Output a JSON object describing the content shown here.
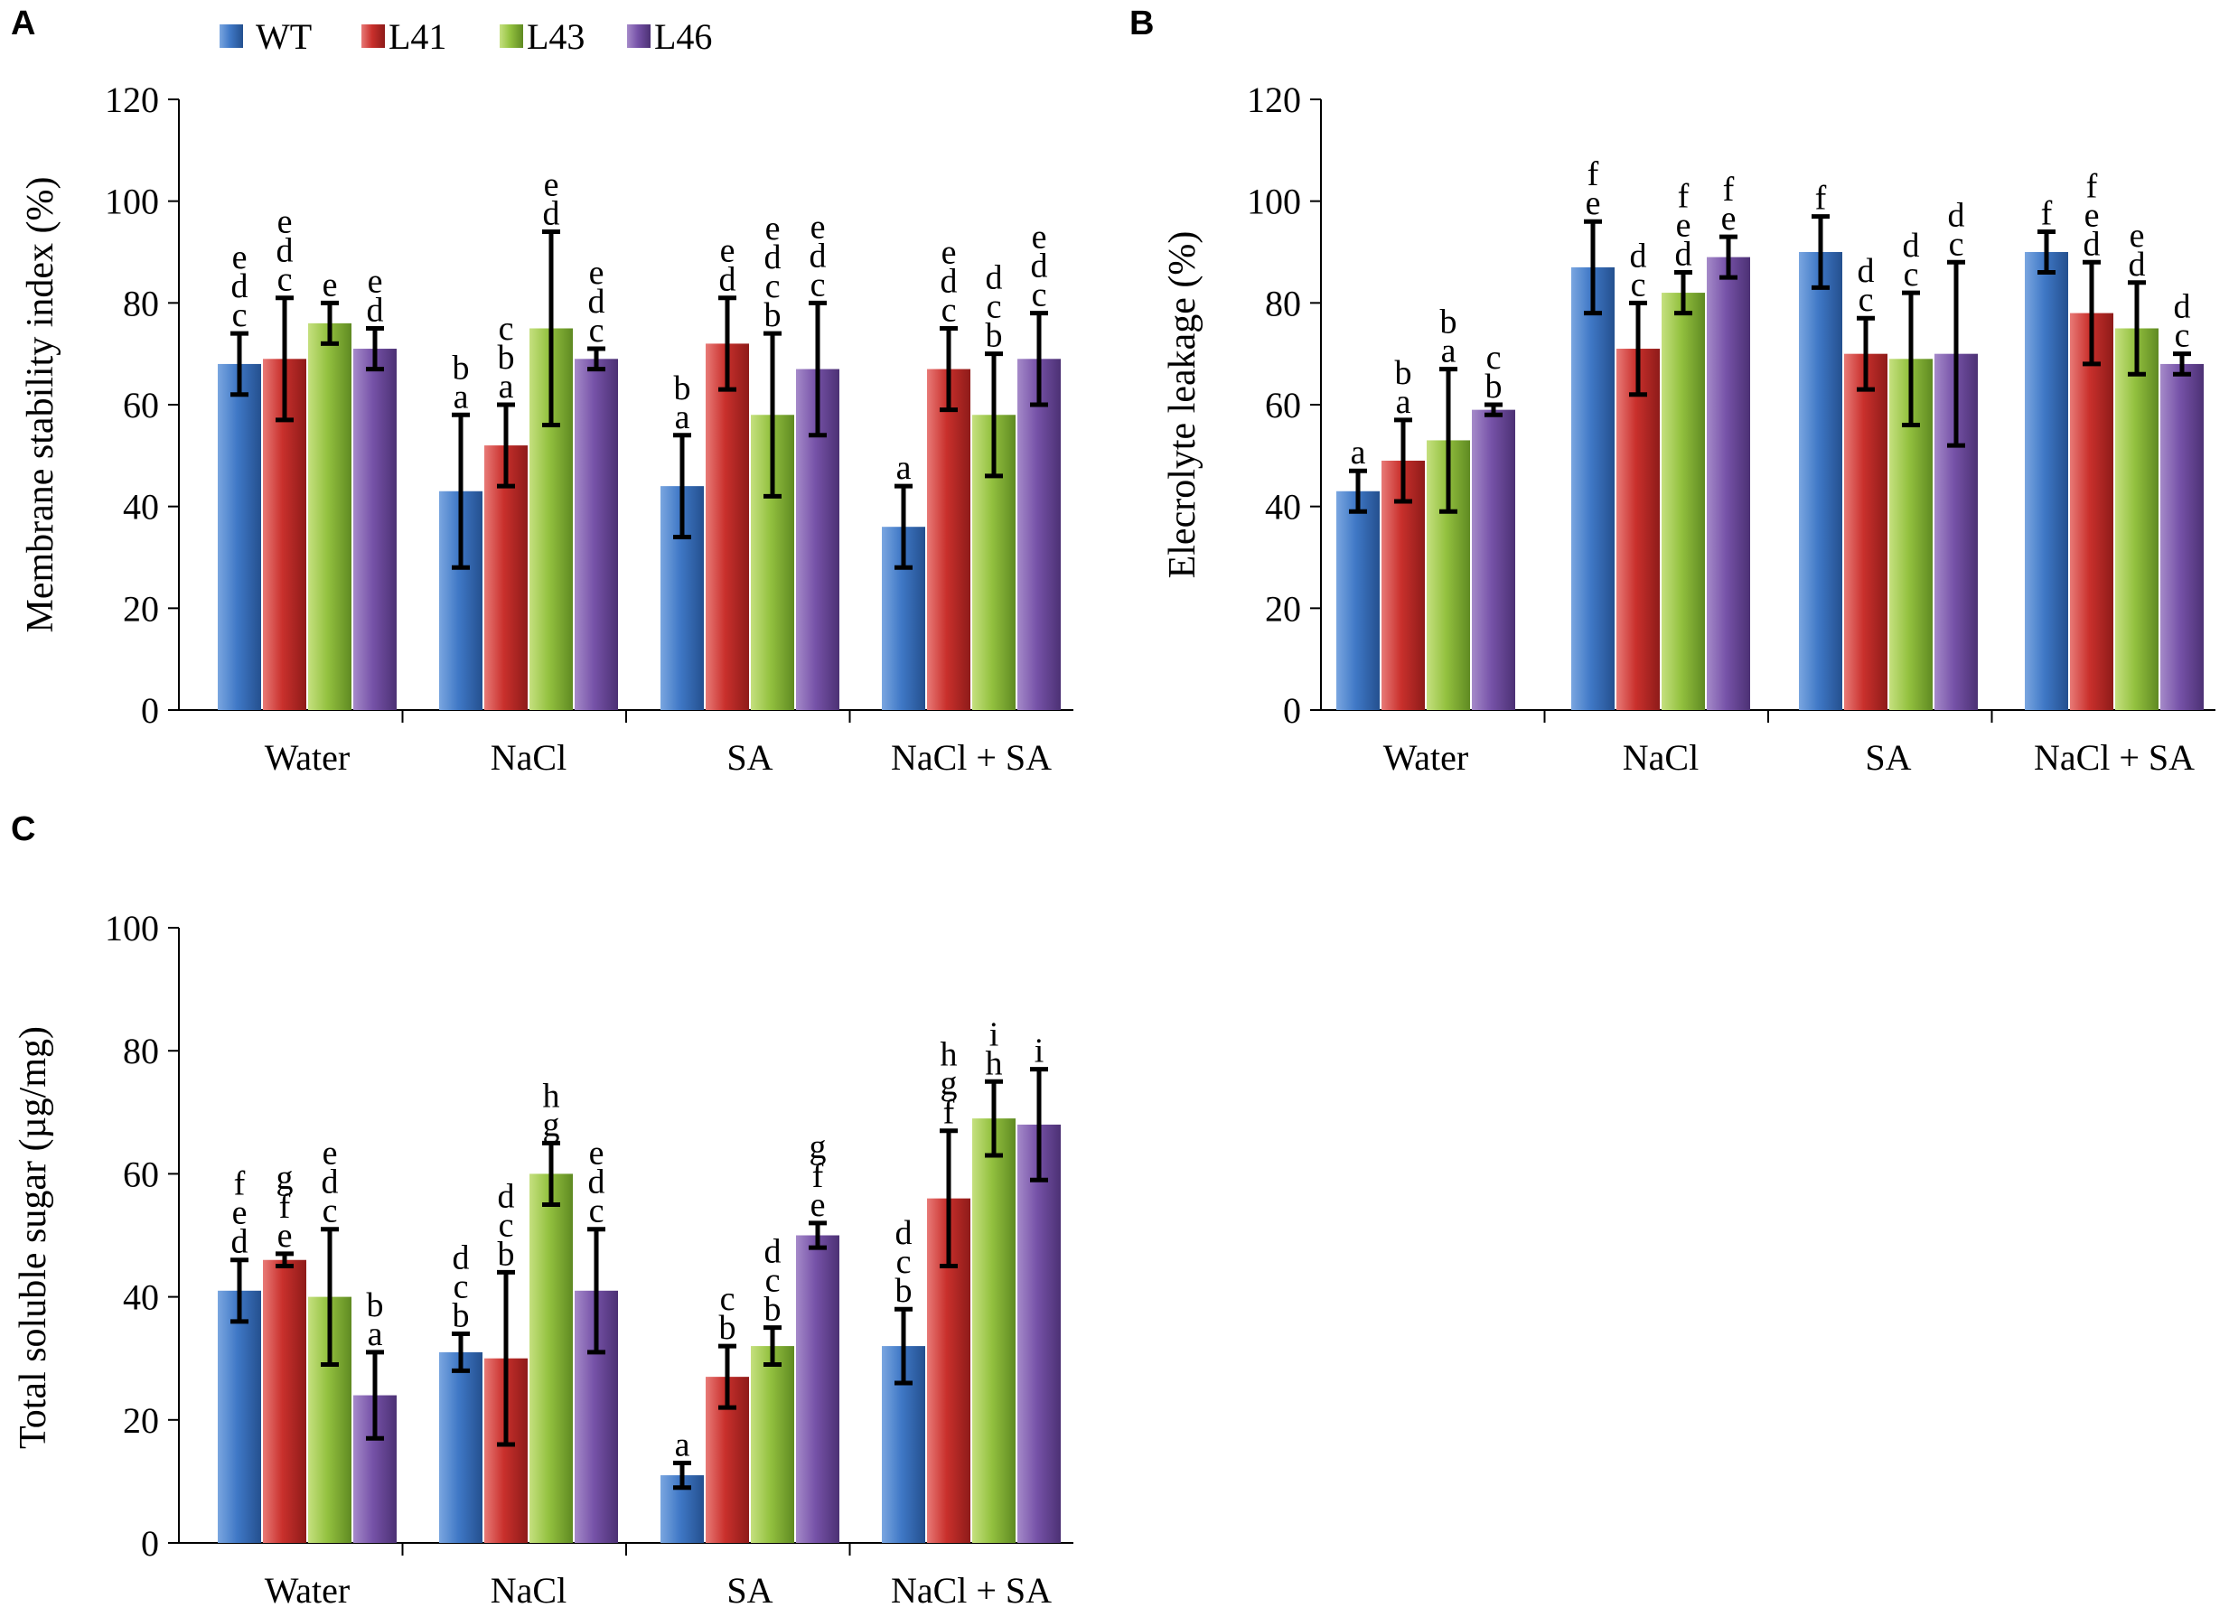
{
  "legend": [
    "WT",
    "L41",
    "L43",
    "L46"
  ],
  "colors": {
    "WT": {
      "light": "#7aa6e0",
      "base": "#3f78c6",
      "dark": "#24508f"
    },
    "L41": {
      "light": "#e87a77",
      "base": "#c9302c",
      "dark": "#8e1b19"
    },
    "L43": {
      "light": "#c5e07f",
      "base": "#93c13f",
      "dark": "#5f8a22"
    },
    "L46": {
      "light": "#a58ac9",
      "base": "#7652a8",
      "dark": "#4c3174"
    }
  },
  "chart_data": [
    {
      "panel": "A",
      "type": "bar",
      "ylabel": "Membrane stability index (%)",
      "xlabel": "",
      "ylim": [
        0,
        120
      ],
      "yticks": [
        0,
        20,
        40,
        60,
        80,
        100,
        120
      ],
      "categories": [
        "Water",
        "NaCl",
        "SA",
        "NaCl + SA"
      ],
      "series": [
        {
          "name": "WT",
          "values": [
            68,
            43,
            44,
            36
          ],
          "errors": [
            6,
            15,
            10,
            8
          ],
          "letters": [
            "edc",
            "ba",
            "ba",
            "a"
          ]
        },
        {
          "name": "L41",
          "values": [
            69,
            52,
            72,
            67
          ],
          "errors": [
            12,
            8,
            9,
            8
          ],
          "letters": [
            "edc",
            "cba",
            "ed",
            "edc"
          ]
        },
        {
          "name": "L43",
          "values": [
            76,
            75,
            58,
            58
          ],
          "errors": [
            4,
            19,
            16,
            12
          ],
          "letters": [
            "e",
            "ed",
            "edcb",
            "dcb"
          ]
        },
        {
          "name": "L46",
          "values": [
            71,
            69,
            67,
            69
          ],
          "errors": [
            4,
            2,
            13,
            9
          ],
          "letters": [
            "ed",
            "edc",
            "edc",
            "edc"
          ]
        }
      ]
    },
    {
      "panel": "B",
      "type": "bar",
      "ylabel": "Elecrolyte leakage (%)",
      "xlabel": "",
      "ylim": [
        0,
        120
      ],
      "yticks": [
        0,
        20,
        40,
        60,
        80,
        100,
        120
      ],
      "categories": [
        "Water",
        "NaCl",
        "SA",
        "NaCl + SA"
      ],
      "series": [
        {
          "name": "WT",
          "values": [
            43,
            87,
            90,
            90
          ],
          "errors": [
            4,
            9,
            7,
            4
          ],
          "letters": [
            "a",
            "fe",
            "f",
            "f"
          ]
        },
        {
          "name": "L41",
          "values": [
            49,
            71,
            70,
            78
          ],
          "errors": [
            8,
            9,
            7,
            10
          ],
          "letters": [
            "ba",
            "dc",
            "dc",
            "fed"
          ]
        },
        {
          "name": "L43",
          "values": [
            53,
            82,
            69,
            75
          ],
          "errors": [
            14,
            4,
            13,
            9
          ],
          "letters": [
            "ba",
            "fed",
            "dc",
            "ed"
          ]
        },
        {
          "name": "L46",
          "values": [
            59,
            89,
            70,
            68
          ],
          "errors": [
            1,
            4,
            18,
            2
          ],
          "letters": [
            "cb",
            "fe",
            "dc",
            "dc"
          ]
        }
      ]
    },
    {
      "panel": "C",
      "type": "bar",
      "ylabel": "Total soluble sugar (µg/mg)",
      "xlabel": "",
      "ylim": [
        0,
        100
      ],
      "yticks": [
        0,
        20,
        40,
        60,
        80,
        100
      ],
      "categories": [
        "Water",
        "NaCl",
        "SA",
        "NaCl + SA"
      ],
      "series": [
        {
          "name": "WT",
          "values": [
            41,
            31,
            11,
            32
          ],
          "errors": [
            5,
            3,
            2,
            6
          ],
          "letters": [
            "fed",
            "dcb",
            "a",
            "dcb"
          ]
        },
        {
          "name": "L41",
          "values": [
            46,
            30,
            27,
            56
          ],
          "errors": [
            1,
            14,
            5,
            11
          ],
          "letters": [
            "gfe",
            "dcb",
            "cb",
            "hgf"
          ]
        },
        {
          "name": "L43",
          "values": [
            40,
            60,
            32,
            69
          ],
          "errors": [
            11,
            5,
            3,
            6
          ],
          "letters": [
            "edc",
            "hg",
            "dcb",
            "ih"
          ]
        },
        {
          "name": "L46",
          "values": [
            24,
            41,
            50,
            68
          ],
          "errors": [
            7,
            10,
            2,
            9
          ],
          "letters": [
            "ba",
            "edc",
            "gfe",
            "i"
          ]
        }
      ]
    }
  ]
}
